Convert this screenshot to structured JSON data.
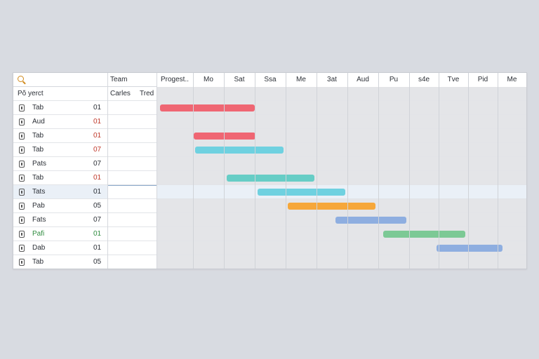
{
  "search": {
    "placeholder": ""
  },
  "header": {
    "team": "Team",
    "project": "Pŏ yerct",
    "team_sub1": "Carles",
    "team_sub2": "Tred"
  },
  "timeline": {
    "columns": [
      "Progest..",
      "Mo",
      "Sat",
      "Ssa",
      "Me",
      "3at",
      "Aud",
      "Pu",
      "s4e",
      "Tve",
      "Pid",
      "Me"
    ]
  },
  "rows": [
    {
      "name": "Tab",
      "num": "01",
      "num_color": "#2b2f36"
    },
    {
      "name": "Aud",
      "num": "01",
      "num_color": "#c0392b"
    },
    {
      "name": "Tab",
      "num": "01",
      "num_color": "#c0392b"
    },
    {
      "name": "Tab",
      "num": "07",
      "num_color": "#c0392b"
    },
    {
      "name": "Pats",
      "num": "07",
      "num_color": "#2b2f36"
    },
    {
      "name": "Tab",
      "num": "01",
      "num_color": "#c0392b"
    },
    {
      "name": "Tats",
      "num": "01",
      "num_color": "#2b2f36",
      "selected": true
    },
    {
      "name": "Pab",
      "num": "05",
      "num_color": "#2b2f36"
    },
    {
      "name": "Fats",
      "num": "07",
      "num_color": "#2b2f36"
    },
    {
      "name": "Pafi",
      "num": "01",
      "num_color": "#2e8b3e",
      "name_color": "#2e8b3e"
    },
    {
      "name": "Dab",
      "num": "01",
      "num_color": "#2b2f36"
    },
    {
      "name": "Tab",
      "num": "05",
      "num_color": "#2b2f36"
    }
  ],
  "bars": [
    {
      "row": 0,
      "color": "#ef6673"
    },
    {
      "row": 2,
      "color": "#ef6673"
    },
    {
      "row": 3,
      "color": "#6fd1e0"
    },
    {
      "row": 5,
      "color": "#66cdc6"
    },
    {
      "row": 6,
      "color": "#6fd1e0"
    },
    {
      "row": 7,
      "color": "#f6a73a"
    },
    {
      "row": 8,
      "color": "#8eaee0"
    },
    {
      "row": 9,
      "color": "#7cc995"
    },
    {
      "row": 10,
      "color": "#8eaee0"
    }
  ]
}
